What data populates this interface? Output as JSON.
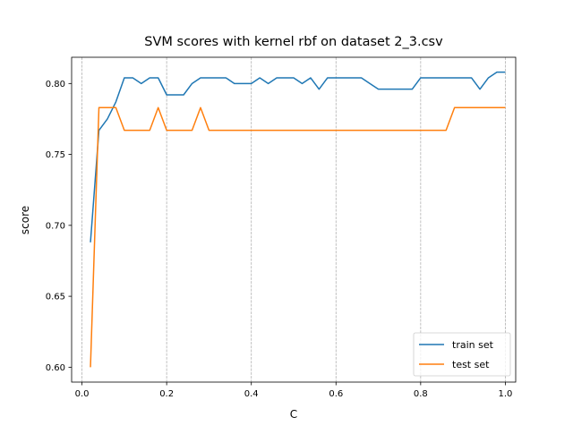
{
  "chart_data": {
    "type": "line",
    "title": "SVM scores with kernel rbf on dataset 2_3.csv",
    "xlabel": "C",
    "ylabel": "score",
    "xlim": [
      -0.0245,
      1.0245
    ],
    "ylim": [
      0.5895,
      0.8185
    ],
    "xticks": [
      0.0,
      0.2,
      0.4,
      0.6,
      0.8,
      1.0
    ],
    "xtick_labels": [
      "0.0",
      "0.2",
      "0.4",
      "0.6",
      "0.8",
      "1.0"
    ],
    "yticks": [
      0.6,
      0.65,
      0.7,
      0.75,
      0.8
    ],
    "ytick_labels": [
      "0.60",
      "0.65",
      "0.70",
      "0.75",
      "0.80"
    ],
    "grid": "x-axis dashed vertical",
    "legend_position": "lower-right",
    "x": [
      0.02,
      0.04,
      0.06,
      0.08,
      0.1,
      0.12,
      0.14,
      0.16,
      0.18,
      0.2,
      0.22,
      0.24,
      0.26,
      0.28,
      0.3,
      0.32,
      0.34,
      0.36,
      0.38,
      0.4,
      0.42,
      0.44,
      0.46,
      0.48,
      0.5,
      0.52,
      0.54,
      0.56,
      0.58,
      0.6,
      0.62,
      0.64,
      0.66,
      0.68,
      0.7,
      0.72,
      0.74,
      0.76,
      0.78,
      0.8,
      0.82,
      0.84,
      0.86,
      0.88,
      0.9,
      0.92,
      0.94,
      0.96,
      0.98,
      1.0
    ],
    "series": [
      {
        "name": "train set",
        "color": "#1f77b4",
        "values": [
          0.688,
          0.767,
          0.775,
          0.787,
          0.804,
          0.804,
          0.8,
          0.804,
          0.804,
          0.792,
          0.792,
          0.792,
          0.8,
          0.804,
          0.804,
          0.804,
          0.804,
          0.8,
          0.8,
          0.8,
          0.804,
          0.8,
          0.804,
          0.804,
          0.804,
          0.8,
          0.804,
          0.796,
          0.804,
          0.804,
          0.804,
          0.804,
          0.804,
          0.8,
          0.796,
          0.796,
          0.796,
          0.796,
          0.796,
          0.804,
          0.804,
          0.804,
          0.804,
          0.804,
          0.804,
          0.804,
          0.796,
          0.804,
          0.808,
          0.808
        ]
      },
      {
        "name": "test set",
        "color": "#ff7f0e",
        "values": [
          0.6,
          0.783,
          0.783,
          0.783,
          0.767,
          0.767,
          0.767,
          0.767,
          0.783,
          0.767,
          0.767,
          0.767,
          0.767,
          0.783,
          0.767,
          0.767,
          0.767,
          0.767,
          0.767,
          0.767,
          0.767,
          0.767,
          0.767,
          0.767,
          0.767,
          0.767,
          0.767,
          0.767,
          0.767,
          0.767,
          0.767,
          0.767,
          0.767,
          0.767,
          0.767,
          0.767,
          0.767,
          0.767,
          0.767,
          0.767,
          0.767,
          0.767,
          0.767,
          0.783,
          0.783,
          0.783,
          0.783,
          0.783,
          0.783,
          0.783
        ]
      }
    ]
  }
}
